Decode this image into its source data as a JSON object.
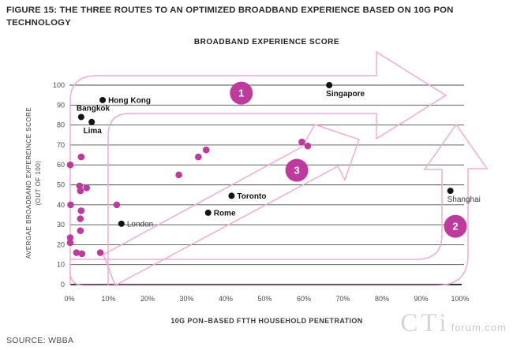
{
  "figure_title": "FIGURE 15: THE THREE ROUTES TO AN OPTIMIZED BROADBAND EXPERIENCE BASED ON 10G PON TECHNOLOGY",
  "source": "SOURCE: WBBA",
  "watermark": {
    "logo": "CTi",
    "domain": "forum.com"
  },
  "chart_data": {
    "type": "scatter",
    "title": "BROADBAND EXPERIENCE SCORE",
    "xlabel": "10G PON–BASED FTTH HOUSEHOLD PENETRATION",
    "ylabel_line1": "AVERGAE BROADBAND EXPEREINCE SCORE",
    "ylabel_line2": "(OUT OF 100)",
    "xlim": [
      0,
      100
    ],
    "ylim": [
      0,
      100
    ],
    "grid": true,
    "x_tick_labels": [
      "0%",
      "10%",
      "20%",
      "30%",
      "40%",
      "50%",
      "60%",
      "70%",
      "80%",
      "90%",
      "100%"
    ],
    "y_tick_labels": [
      "0",
      "10",
      "20",
      "30",
      "40",
      "50",
      "60",
      "70",
      "80",
      "90",
      "100"
    ],
    "labeled_points": [
      {
        "city": "Hong Kong",
        "x": 8.5,
        "y": 92.5,
        "label_pos": "right",
        "bold": true
      },
      {
        "city": "Bangkok",
        "x": 3.0,
        "y": 84.0,
        "label_pos": "above",
        "bold": true
      },
      {
        "city": "Lima",
        "x": 5.7,
        "y": 81.5,
        "label_pos": "below-center",
        "bold": true
      },
      {
        "city": "Singapore",
        "x": 66.5,
        "y": 100.0,
        "label_pos": "below",
        "bold": true
      },
      {
        "city": "Toronto",
        "x": 41.5,
        "y": 44.5,
        "label_pos": "right",
        "bold": true
      },
      {
        "city": "Rome",
        "x": 35.5,
        "y": 36.0,
        "label_pos": "right",
        "bold": true
      },
      {
        "city": "London",
        "x": 13.3,
        "y": 30.5,
        "label_pos": "right",
        "bold": false
      },
      {
        "city": "Shanghai",
        "x": 97.5,
        "y": 47.0,
        "label_pos": "below",
        "bold": false
      }
    ],
    "unlabeled_points": [
      [
        0.2,
        60
      ],
      [
        3.0,
        64
      ],
      [
        2.6,
        49.5
      ],
      [
        2.8,
        47
      ],
      [
        4.4,
        48.5
      ],
      [
        0.3,
        40
      ],
      [
        12.1,
        40
      ],
      [
        3.0,
        37
      ],
      [
        2.8,
        33
      ],
      [
        2.8,
        27
      ],
      [
        0.2,
        23.5
      ],
      [
        0.2,
        21
      ],
      [
        1.8,
        16
      ],
      [
        3.2,
        15.5
      ],
      [
        7.9,
        16
      ],
      [
        28,
        55
      ],
      [
        33,
        64
      ],
      [
        35,
        67.5
      ],
      [
        59.5,
        71.5
      ],
      [
        61,
        69.5
      ]
    ],
    "routes": [
      {
        "label": "1",
        "x": 44.0,
        "y": 96.0
      },
      {
        "label": "2",
        "x": 98.8,
        "y": 29.2
      },
      {
        "label": "3",
        "x": 58.2,
        "y": 57.3
      }
    ],
    "colors": {
      "point": "#be3a9c",
      "city_point": "#141414",
      "route_outline": "#f2abd3",
      "badge": "#be3a9c",
      "grid": "#4f4f4f",
      "axis": "#1b1b1b"
    }
  }
}
